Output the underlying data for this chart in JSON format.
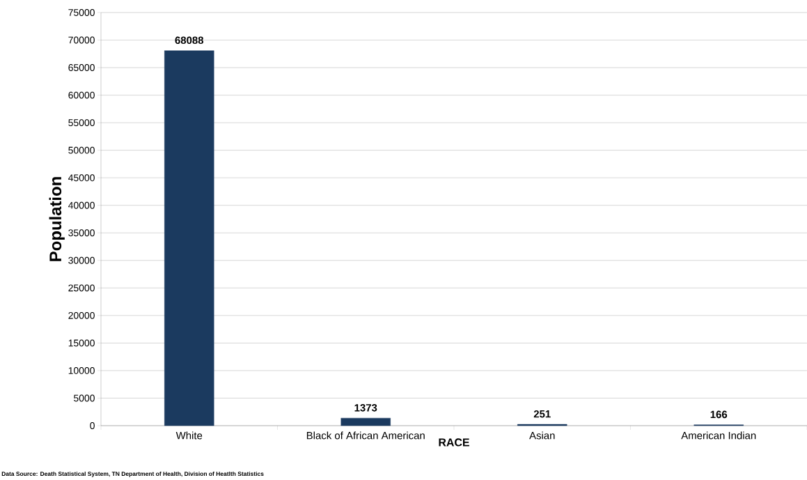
{
  "chart_data": {
    "type": "bar",
    "categories": [
      "White",
      "Black of African American",
      "Asian",
      "American Indian"
    ],
    "values": [
      68088,
      1373,
      251,
      166
    ],
    "color": "#1b3a5f",
    "xlabel": "RACE",
    "ylabel": "Population",
    "ylim": [
      0,
      75000
    ],
    "yticks": [
      0,
      5000,
      10000,
      15000,
      20000,
      25000,
      30000,
      35000,
      40000,
      45000,
      50000,
      55000,
      60000,
      65000,
      70000,
      75000
    ],
    "grid": "y",
    "data_labels": true,
    "annotations": [
      "Data Source: Death Statistical System, TN Department of Health, Division of Heatlth Statistics"
    ]
  }
}
